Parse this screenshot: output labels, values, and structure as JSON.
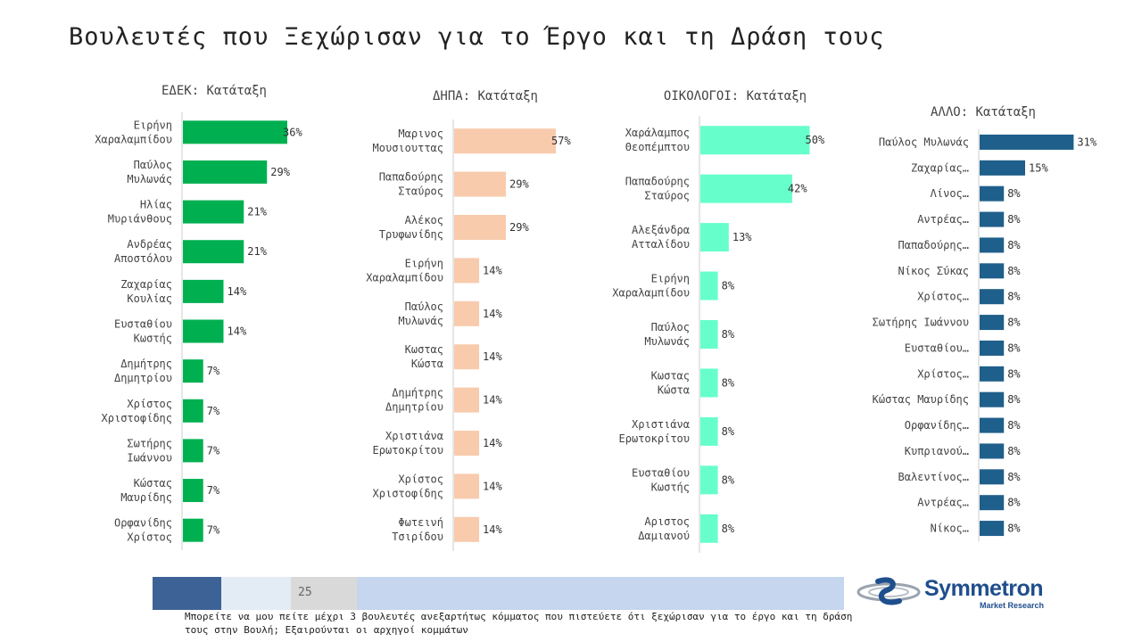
{
  "title": "Βουλευτές που Ξεχώρισαν για το Έργο και τη Δράση τους",
  "footer": {
    "page_number": "25",
    "question": "Μπορείτε να μου πείτε μέχρι 3 βουλευτές ανεξαρτήτως κόμματος που πιστεύετε ότι ξεχώρισαν για το έργο και τη δράση τους στην Βουλή; Εξαιρούνται οι αρχηγοί κομμάτων"
  },
  "logo": {
    "name": "Symmetron",
    "subtitle": "Market Research"
  },
  "colors": {
    "edek": "#00b050",
    "dipa": "#f8cbad",
    "ecologists": "#66ffcc",
    "other": "#1f5f8b"
  },
  "chart_data": [
    {
      "type": "bar",
      "orientation": "horizontal",
      "value_unit": "%",
      "title": "ΕΔΕΚ: Κατάταξη",
      "categories": [
        "Ειρήνη Χαραλαμπίδου",
        "Παύλος Μυλωνάς",
        "Ηλίας Μυριάνθους",
        "Ανδρέας Αποστόλου",
        "Ζαχαρίας Κουλίας",
        "Ευσταθίου Κωστής",
        "Δημήτρης Δημητρίου",
        "Χρίστος Χριστοφίδης",
        "Σωτήρης Ιωάννου",
        "Κώστας Μαυρίδης",
        "Ορφανίδης Χρίστος"
      ],
      "values": [
        36,
        29,
        21,
        21,
        14,
        14,
        7,
        7,
        7,
        7,
        7
      ],
      "color": "#00b050"
    },
    {
      "type": "bar",
      "orientation": "horizontal",
      "value_unit": "%",
      "title": "ΔΗΠΑ: Κατάταξη",
      "categories": [
        "Μαρινος Μουσιουττας",
        "Παπαδούρης Σταύρος",
        "Αλέκος Τρυφωνίδης",
        "Ειρήνη Χαραλαμπίδου",
        "Παύλος Μυλωνάς",
        "Κωστας Κώστα",
        "Δημήτρης Δημητρίου",
        "Χριστιάνα Ερωτοκρίτου",
        "Χρίστος Χριστοφίδης",
        "Φωτεινή Τσιρίδου"
      ],
      "values": [
        57,
        29,
        29,
        14,
        14,
        14,
        14,
        14,
        14,
        14
      ],
      "color": "#f8cbad"
    },
    {
      "type": "bar",
      "orientation": "horizontal",
      "value_unit": "%",
      "title": "ΟΙΚΟΛΟΓΟΙ: Κατάταξη",
      "categories": [
        "Χαράλαμπος Θεοπέμπτου",
        "Παπαδούρης Σταύρος",
        "Αλεξάνδρα Ατταλίδου",
        "Ειρήνη Χαραλαμπίδου",
        "Παύλος Μυλωνάς",
        "Κωστας Κώστα",
        "Χριστιάνα Ερωτοκρίτου",
        "Ευσταθίου Κωστής",
        "Αριστος Δαμιανού"
      ],
      "values": [
        50,
        42,
        13,
        8,
        8,
        8,
        8,
        8,
        8
      ],
      "color": "#66ffcc"
    },
    {
      "type": "bar",
      "orientation": "horizontal",
      "value_unit": "%",
      "title": "ΑΛΛΟ: Κατάταξη",
      "categories": [
        "Παύλος Μυλωνάς",
        "Ζαχαρίας…",
        "Λίνος…",
        "Αντρέας…",
        "Παπαδούρης…",
        "Νίκος Σύκας",
        "Χρίστος…",
        "Σωτήρης Ιωάννου",
        "Ευσταθίου…",
        "Χρίστος…",
        "Κώστας Μαυρίδης",
        "Ορφανίδης…",
        "Κυπριανού…",
        "Βαλεντίνος…",
        "Αντρέας…",
        "Νίκος…"
      ],
      "values": [
        31,
        15,
        8,
        8,
        8,
        8,
        8,
        8,
        8,
        8,
        8,
        8,
        8,
        8,
        8,
        8
      ],
      "color": "#1f5f8b"
    }
  ]
}
